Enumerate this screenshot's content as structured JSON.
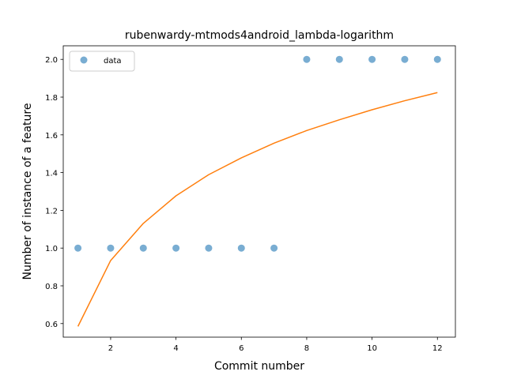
{
  "chart_data": {
    "type": "scatter",
    "title": "rubenwardy-mtmods4android_lambda-logarithm",
    "xlabel": "Commit number",
    "ylabel": "Number of instance of a feature",
    "xlim": [
      0.55,
      12.55
    ],
    "ylim": [
      0.528,
      2.072
    ],
    "xticks": [
      2,
      4,
      6,
      8,
      10,
      12
    ],
    "xtick_labels": [
      "2",
      "4",
      "6",
      "8",
      "10",
      "12"
    ],
    "yticks": [
      0.6,
      0.8,
      1.0,
      1.2,
      1.4,
      1.6,
      1.8,
      2.0
    ],
    "ytick_labels": [
      "0.6",
      "0.8",
      "1.0",
      "1.2",
      "1.4",
      "1.6",
      "1.8",
      "2.0"
    ],
    "grid": false,
    "legend_position": "top-left",
    "series": [
      {
        "name": "data",
        "kind": "scatter",
        "color": "#1f77b4",
        "x": [
          1,
          2,
          3,
          4,
          5,
          6,
          7,
          8,
          9,
          10,
          11,
          12
        ],
        "y": [
          1,
          1,
          1,
          1,
          1,
          1,
          1,
          2,
          2,
          2,
          2,
          2
        ]
      },
      {
        "kind": "line",
        "color": "#ff7f0e",
        "x": [
          1,
          2,
          3,
          4,
          5,
          6,
          7,
          8,
          9,
          10,
          11,
          12
        ],
        "y": [
          0.585,
          0.934,
          1.131,
          1.277,
          1.389,
          1.478,
          1.556,
          1.623,
          1.68,
          1.733,
          1.781,
          1.824
        ]
      }
    ]
  }
}
